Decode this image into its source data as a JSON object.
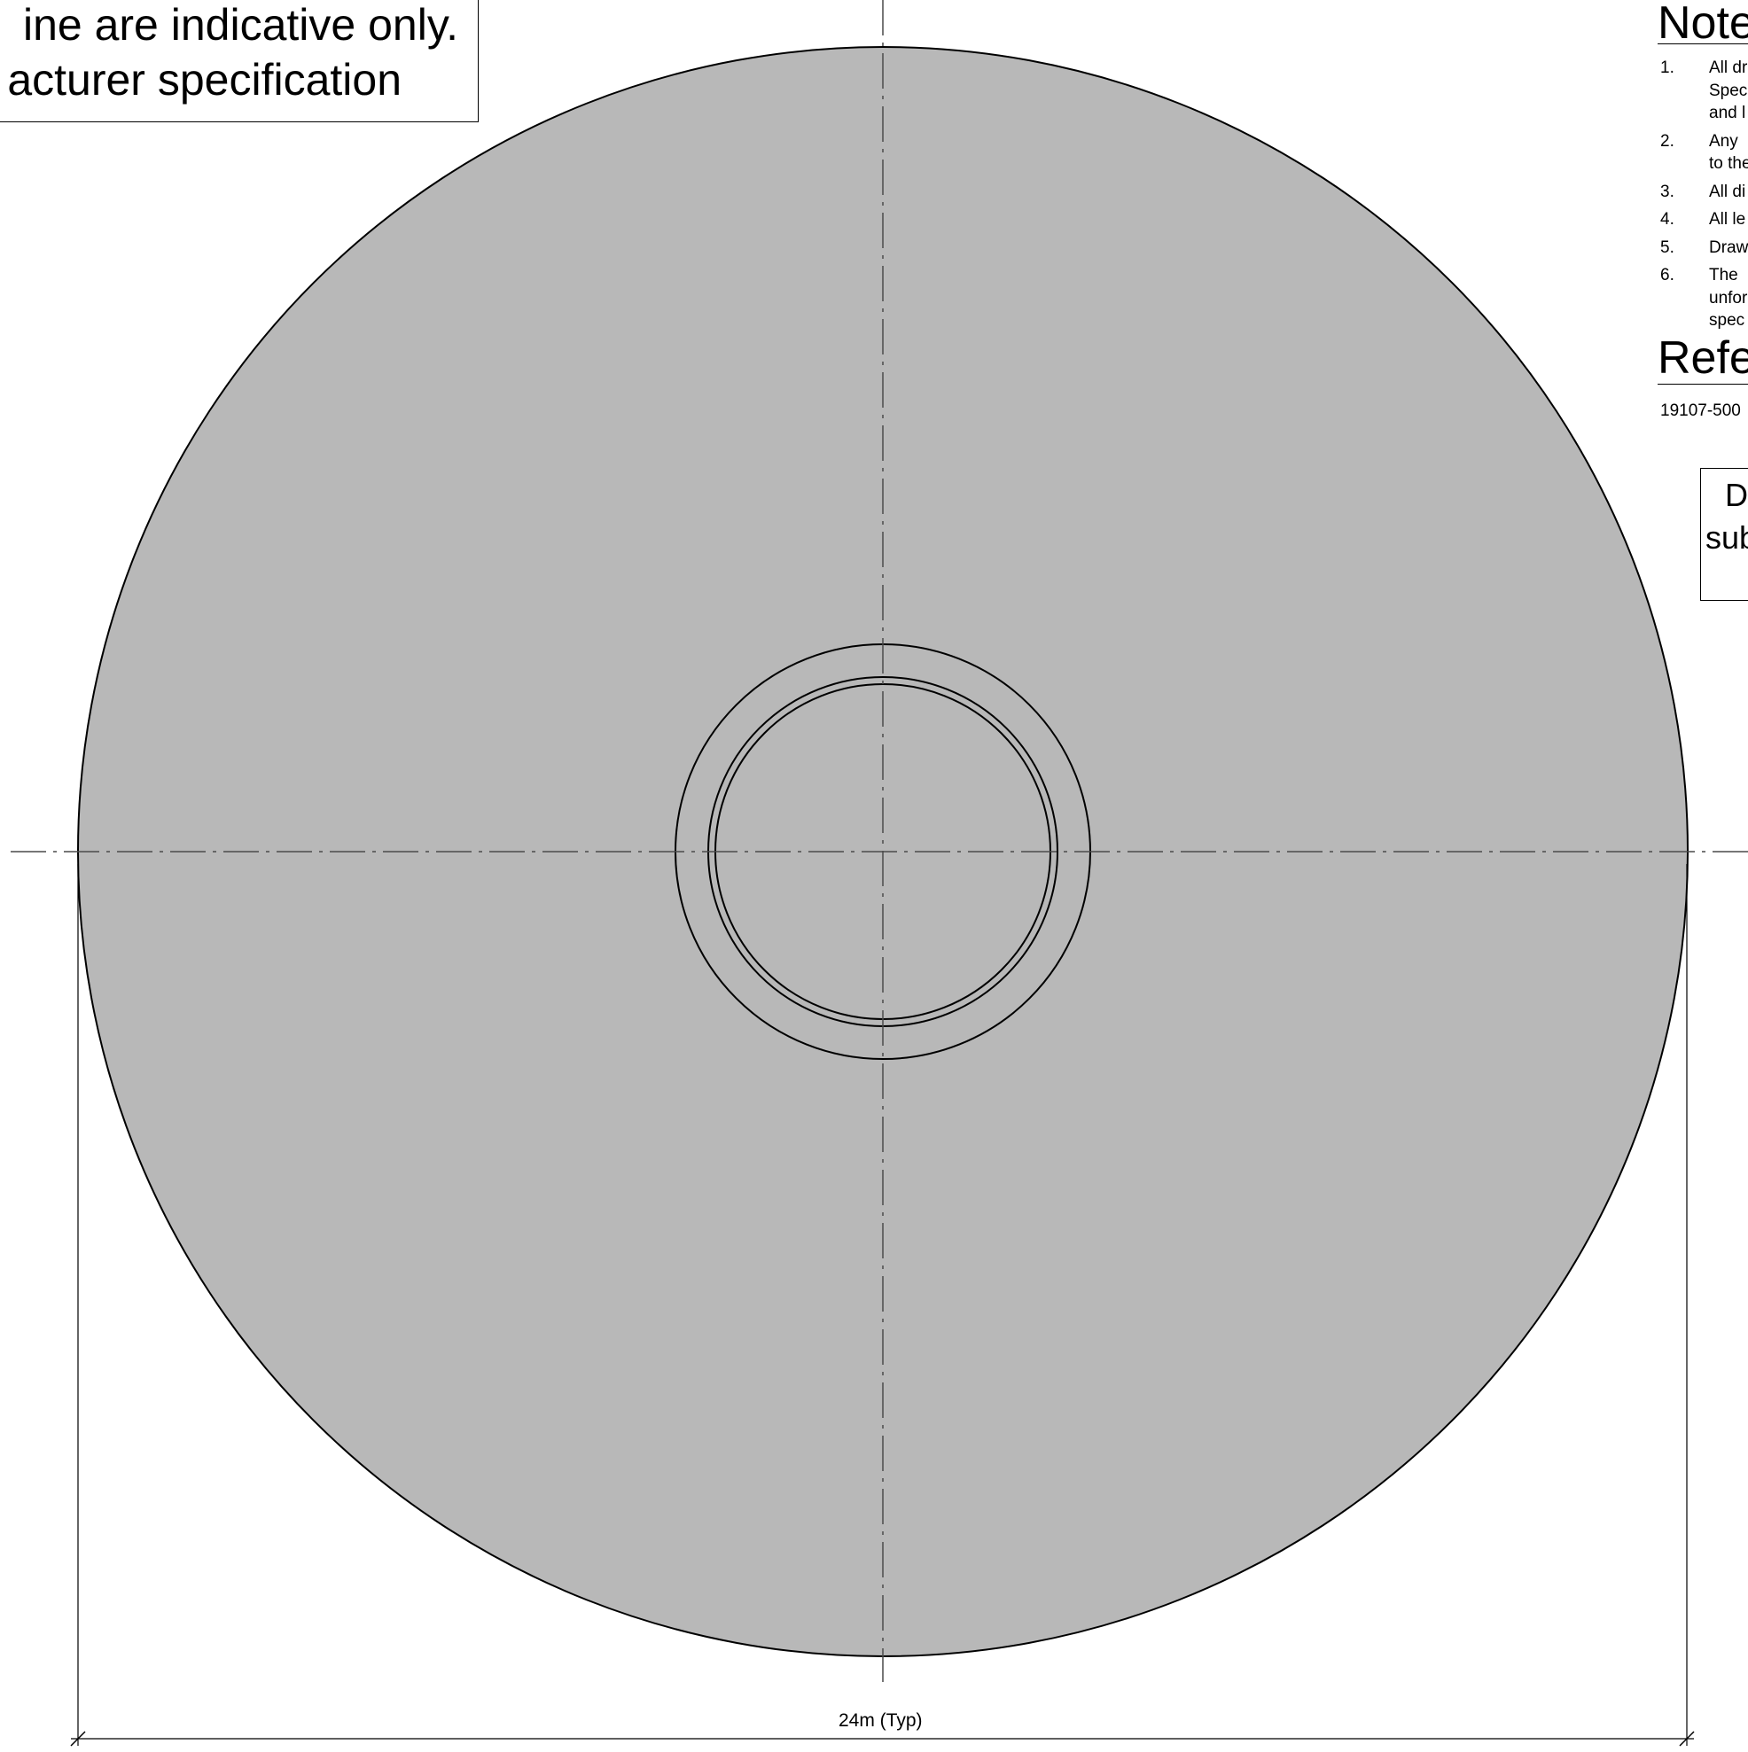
{
  "disclaimer": {
    "line1": "ine are indicative only.",
    "line2": "acturer specification"
  },
  "notes": {
    "heading": "Note",
    "items": [
      {
        "number": "1.",
        "lines": [
          "All dr",
          "Spec",
          "and l"
        ]
      },
      {
        "number": "2.",
        "lines": [
          "Any",
          "to the"
        ]
      },
      {
        "number": "3.",
        "lines": [
          "All di"
        ]
      },
      {
        "number": "4.",
        "lines": [
          "All le"
        ]
      },
      {
        "number": "5.",
        "lines": [
          "Draw"
        ]
      },
      {
        "number": "6.",
        "lines": [
          "The",
          "unfor",
          "spec"
        ]
      }
    ]
  },
  "references": {
    "heading": "Refe",
    "text": "19107-500"
  },
  "stamp": {
    "line1": "D",
    "line2": "sub"
  },
  "dimension": {
    "label": "24m (Typ)"
  },
  "colors": {
    "disc_fill": "#b8b8b8",
    "outline": "#000000",
    "centerline": "#4a4a4a"
  }
}
